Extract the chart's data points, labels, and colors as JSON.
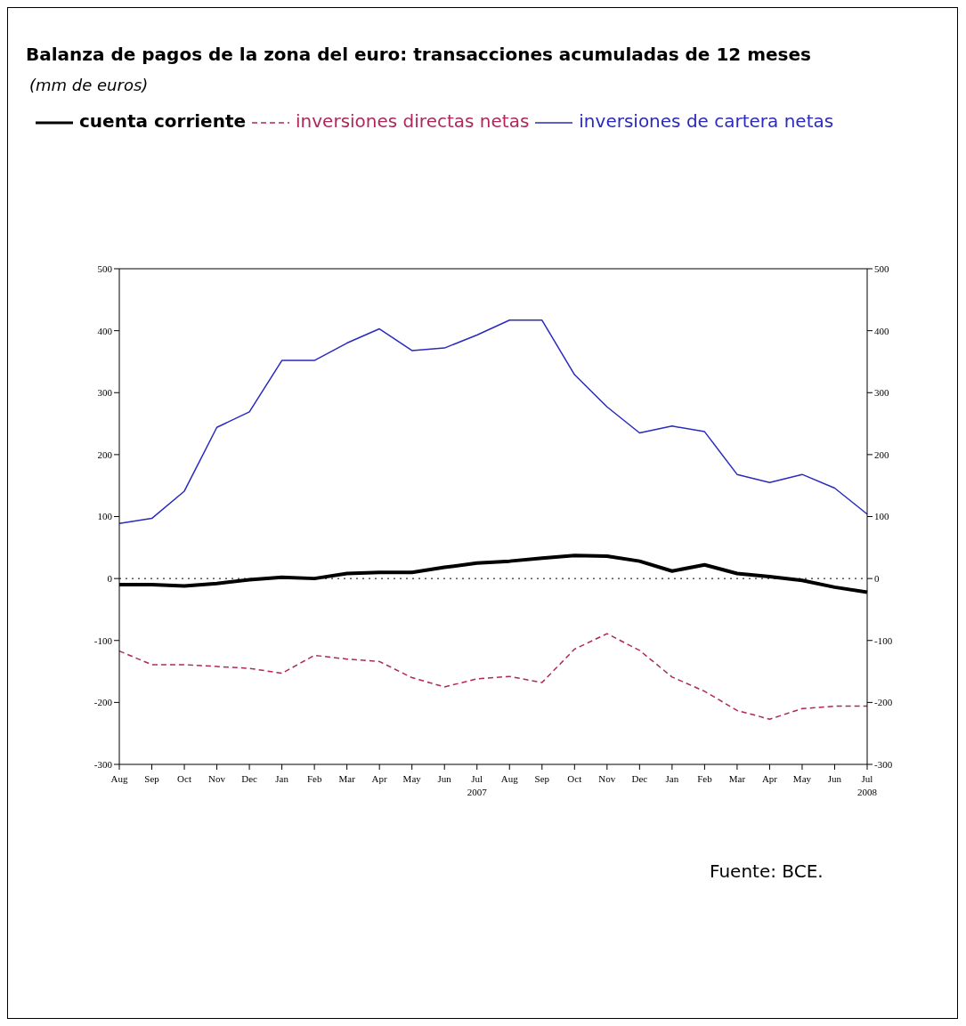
{
  "chart_data": {
    "type": "line",
    "title": "Balanza de pagos de la zona del euro: transacciones acumuladas de 12 meses",
    "subtitle": "(mm de euros)",
    "categories": [
      "Aug",
      "Sep",
      "Oct",
      "Nov",
      "Dec",
      "Jan",
      "Feb",
      "Mar",
      "Apr",
      "May",
      "Jun",
      "Jul\n2007",
      "Aug",
      "Sep",
      "Oct",
      "Nov",
      "Dec",
      "Jan",
      "Feb",
      "Mar",
      "Apr",
      "May",
      "Jun",
      "Jul\n2008"
    ],
    "series": [
      {
        "name": "cuenta corriente",
        "color": "#000000",
        "line_style": "solid",
        "values": [
          -10,
          -10,
          -12,
          -8,
          -2,
          2,
          0,
          8,
          10,
          10,
          18,
          25,
          28,
          33,
          37,
          36,
          28,
          12,
          22,
          8,
          3,
          -3,
          -14,
          -22
        ]
      },
      {
        "name": "inversiones directas netas",
        "color": "#b0285a",
        "line_style": "dashed",
        "values": [
          -117,
          -139,
          -139,
          -142,
          -145,
          -153,
          -124,
          -130,
          -134,
          -160,
          -175,
          -162,
          -158,
          -168,
          -114,
          -89,
          -116,
          -159,
          -182,
          -213,
          -227,
          -210,
          -206,
          -206
        ]
      },
      {
        "name": "inversiones de cartera netas",
        "color": "#2a2ac0",
        "line_style": "solid",
        "values": [
          89,
          97,
          141,
          244,
          269,
          352,
          352,
          380,
          403,
          368,
          372,
          393,
          417,
          417,
          329,
          277,
          235,
          246,
          237,
          168,
          155,
          168,
          146,
          104
        ]
      }
    ],
    "ylim": [
      -300,
      500
    ],
    "yticks": [
      -300,
      -200,
      -100,
      0,
      100,
      200,
      300,
      400,
      500
    ],
    "y2lim": [
      -300,
      500
    ],
    "y2ticks": [
      -300,
      -200,
      -100,
      0,
      100,
      200,
      300,
      400,
      500
    ],
    "ref_lines": [
      {
        "axis": "y",
        "value": 0,
        "color": "#000000",
        "line_style": "dotted"
      }
    ],
    "legend": "top",
    "grid": false,
    "marker": "none",
    "annotations": [
      "Fuente: BCE."
    ]
  }
}
